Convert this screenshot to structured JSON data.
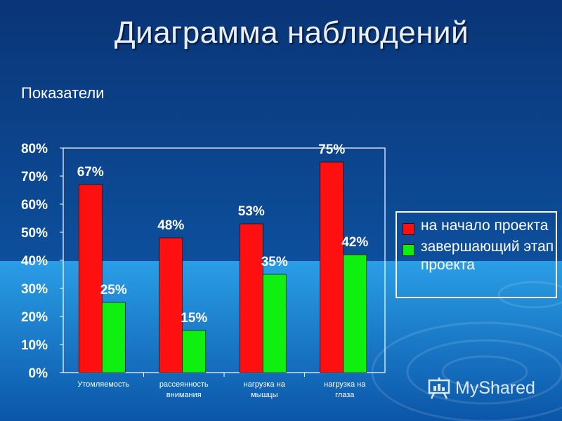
{
  "slide": {
    "title": "Диаграмма наблюдений",
    "subtitle": "Показатели"
  },
  "chart_data": {
    "type": "bar",
    "title": "",
    "xlabel": "",
    "ylabel": "",
    "ylim": [
      0,
      80
    ],
    "yticks": [
      "0%",
      "10%",
      "20%",
      "30%",
      "40%",
      "50%",
      "60%",
      "70%",
      "80%"
    ],
    "categories": [
      [
        "Утомляемость"
      ],
      [
        "рассеянность",
        "внимания"
      ],
      [
        "нагрузка на",
        "мышцы"
      ],
      [
        "нагрузка на",
        "глаза"
      ]
    ],
    "series": [
      {
        "name": "на начало проекта",
        "color": "#ff1010",
        "values": [
          67,
          48,
          53,
          75
        ],
        "labels": [
          "67%",
          "48%",
          "53%",
          "75%"
        ]
      },
      {
        "name": "завершающий этап проекта",
        "color": "#10f010",
        "values": [
          25,
          15,
          35,
          42
        ],
        "labels": [
          "25%",
          "15%",
          "35%",
          "42%"
        ]
      }
    ],
    "legend_position": "right"
  },
  "watermark": {
    "text": "MyShared"
  },
  "colors": {
    "axis": "#ffffff",
    "background_top": "#0a3f86",
    "background_bottom": "#1d8fd8"
  }
}
